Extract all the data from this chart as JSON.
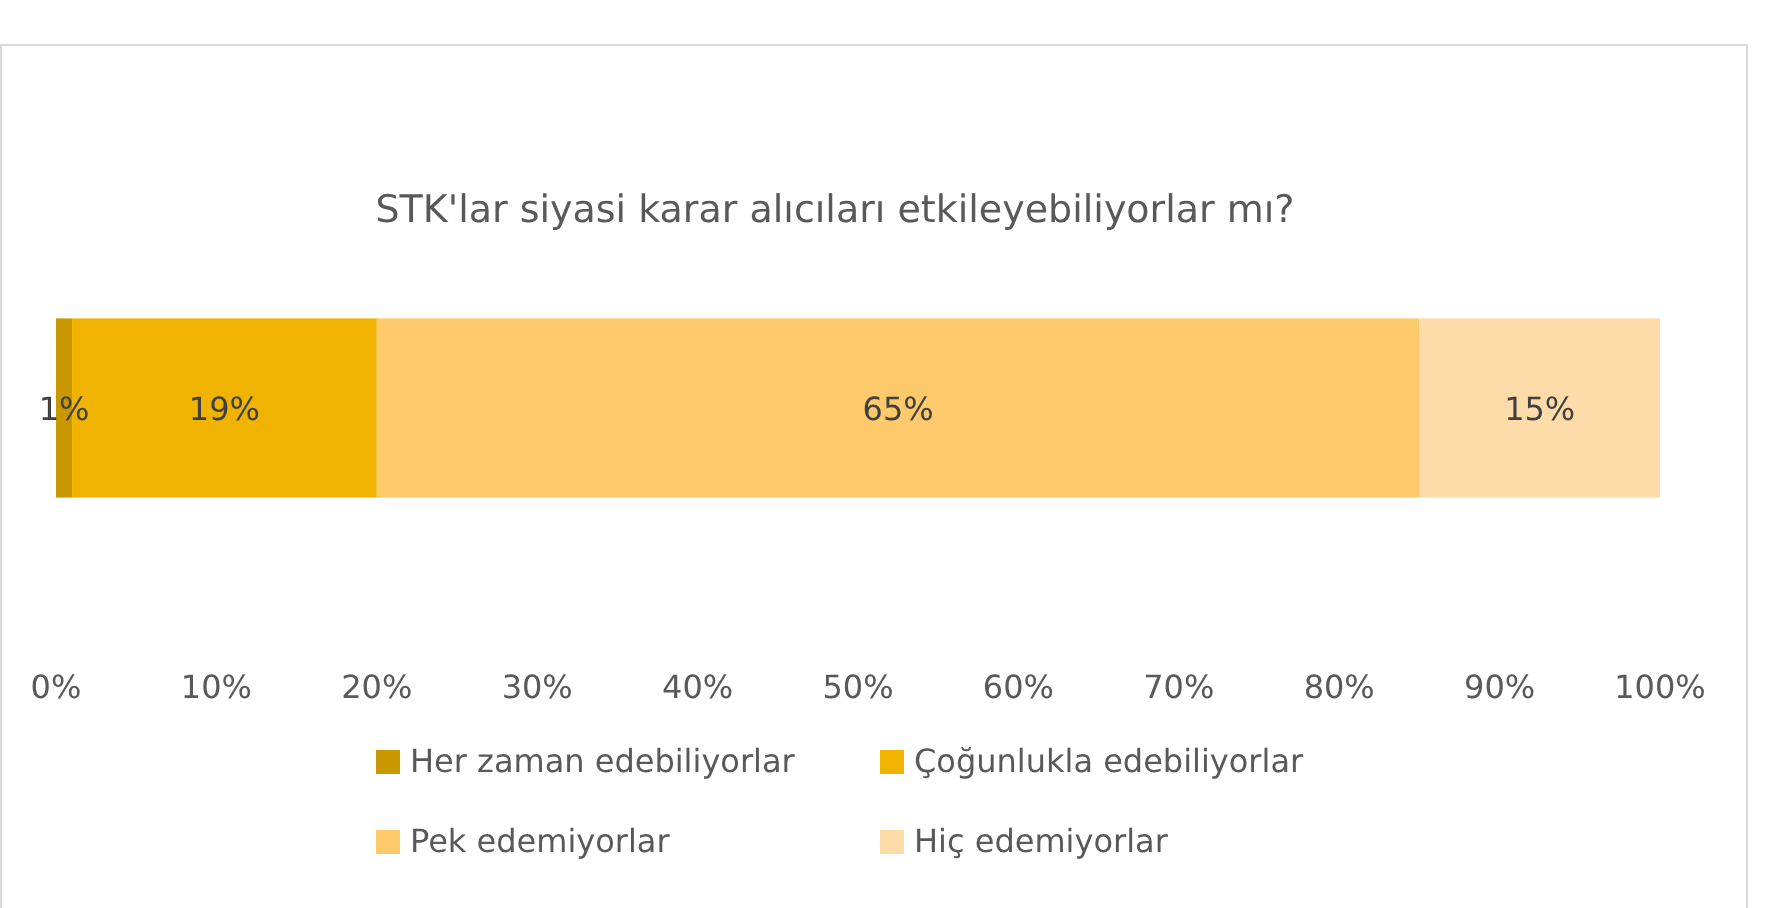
{
  "chart_data": {
    "type": "bar",
    "orientation": "horizontal",
    "stacked": true,
    "title": "STK'lar siyasi karar alıcıları etkileyebiliyorlar mı?",
    "categories": [
      null
    ],
    "series": [
      {
        "name": "Her zaman edebiliyorlar",
        "color": "#c99700",
        "values": [
          1
        ],
        "value_labels": [
          "1%"
        ]
      },
      {
        "name": "Çoğunlukla edebiliyorlar",
        "color": "#f0b400",
        "values": [
          19
        ],
        "value_labels": [
          "19%"
        ]
      },
      {
        "name": "Pek edemiyorlar",
        "color": "#fec96b",
        "values": [
          65
        ],
        "value_labels": [
          "65%"
        ]
      },
      {
        "name": "Hiç edemiyorlar",
        "color": "#fedcaa",
        "values": [
          15
        ],
        "value_labels": [
          "15%"
        ]
      }
    ],
    "xlim": [
      0,
      100
    ],
    "xticks": [
      {
        "value": 0,
        "label": "0%"
      },
      {
        "value": 10,
        "label": "10%"
      },
      {
        "value": 20,
        "label": "20%"
      },
      {
        "value": 30,
        "label": "30%"
      },
      {
        "value": 40,
        "label": "40%"
      },
      {
        "value": 50,
        "label": "50%"
      },
      {
        "value": 60,
        "label": "60%"
      },
      {
        "value": 70,
        "label": "70%"
      },
      {
        "value": 80,
        "label": "80%"
      },
      {
        "value": 90,
        "label": "90%"
      },
      {
        "value": 100,
        "label": "100%"
      }
    ],
    "grid": false,
    "legend": "bottom"
  }
}
